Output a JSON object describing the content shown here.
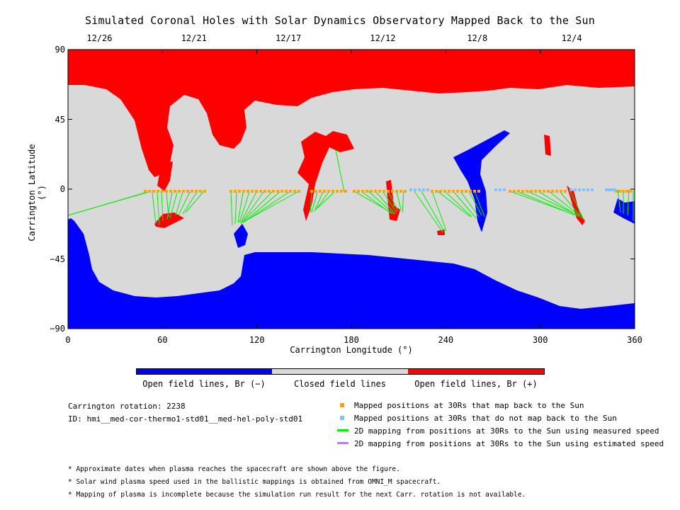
{
  "title": "Simulated Coronal Holes with Solar Dynamics Observatory Mapped Back to the Sun",
  "top_dates": [
    {
      "label": "12/26",
      "lon": 20
    },
    {
      "label": "12/21",
      "lon": 80
    },
    {
      "label": "12/17",
      "lon": 140
    },
    {
      "label": "12/12",
      "lon": 200
    },
    {
      "label": "12/8",
      "lon": 260
    },
    {
      "label": "12/4",
      "lon": 320
    }
  ],
  "x_axis": {
    "label": "Carrington Longitude (°)",
    "ticks": [
      "0",
      "60",
      "120",
      "180",
      "240",
      "300",
      "360"
    ],
    "range": [
      0,
      360
    ]
  },
  "y_axis": {
    "label": "Carrington Latitude (°)",
    "ticks": [
      "90",
      "45",
      "0",
      "−45",
      "−90"
    ],
    "range": [
      -90,
      90
    ]
  },
  "colors": {
    "open_negative": "#0000ff",
    "closed": "#d9d9d9",
    "open_positive": "#ff0000",
    "mapped": "#ffa500",
    "unmapped": "#87bfff",
    "measured": "#00ee00",
    "estimated": "#b47fe6"
  },
  "colorbar": [
    {
      "label": "Open field lines, Br (−)",
      "color": "#0000ff"
    },
    {
      "label": "Closed field lines",
      "color": "#d9d9d9"
    },
    {
      "label": "Open field lines, Br (+)",
      "color": "#ff0000"
    }
  ],
  "info": {
    "rotation": "Carrington rotation: 2238",
    "id": "ID: hmi__med-cor-thermo1-std01__med-hel-poly-std01"
  },
  "legend": [
    {
      "label": "Mapped positions at 30Rs that map back to the Sun",
      "kind": "square",
      "color": "#ffa500"
    },
    {
      "label": "Mapped positions at 30Rs that do not map back to the Sun",
      "kind": "square",
      "color": "#87bfff"
    },
    {
      "label": "2D mapping from positions at 30Rs to the Sun using measured speed",
      "kind": "line",
      "color": "#00ee00"
    },
    {
      "label": "2D mapping from positions at 30Rs to the Sun using estimated speed",
      "kind": "line",
      "color": "#b47fe6"
    }
  ],
  "notes": [
    "* Approximate dates when plasma reaches the spacecraft are shown above the figure.",
    "* Solar wind plasma speed used in the ballistic mappings is obtained from OMNI_M spacecraft.",
    "* Mapping of plasma is incomplete because the simulation run result for the next Carr. rotation is not available."
  ]
}
